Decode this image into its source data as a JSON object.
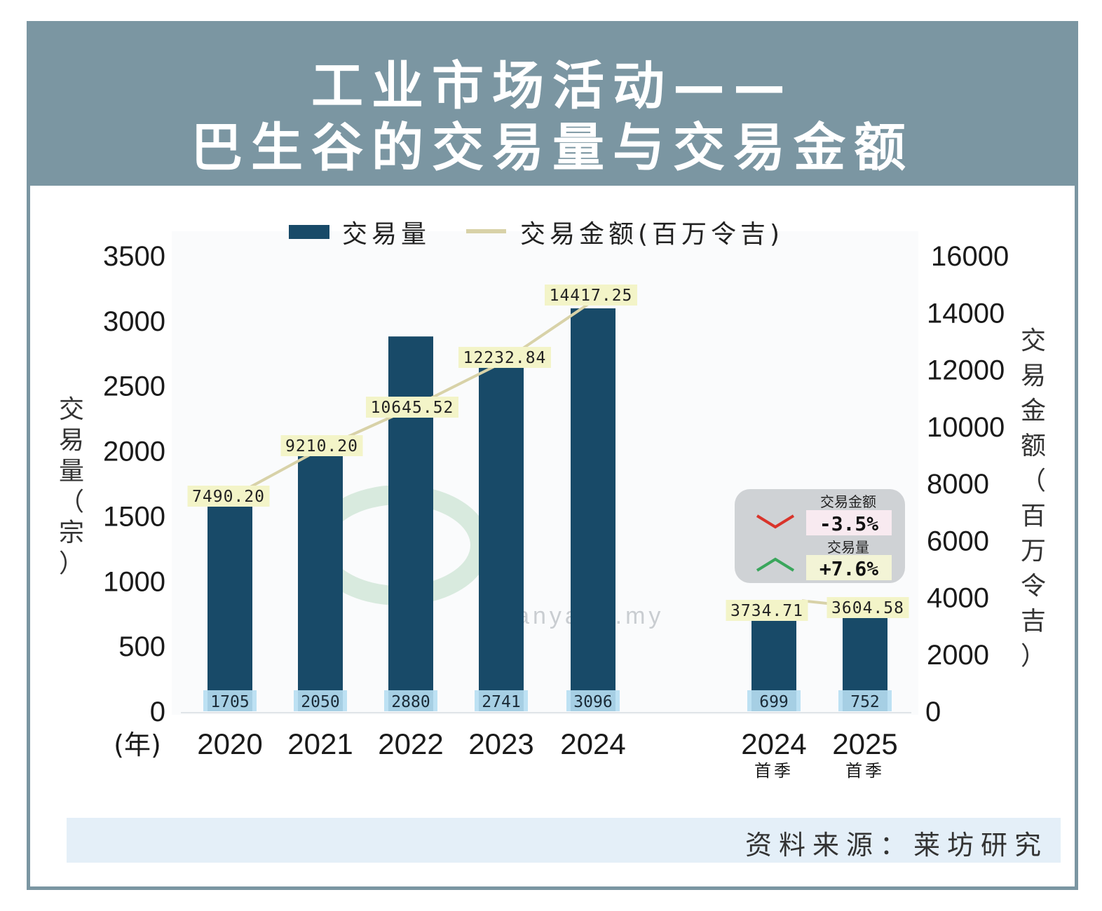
{
  "title": {
    "line1": "工业市场活动——",
    "line2": "巴生谷的交易量与交易金额"
  },
  "watermark": "eNanyang.my",
  "source": "资料来源：莱坊研究",
  "colors": {
    "bar": "#184a68",
    "line": "#d8d2a8",
    "value_label_bg": "#f3f4c8",
    "bar_label_bg": "#b6def2",
    "header": "#7b96a2",
    "down": "#d9342b",
    "up": "#3aa65c"
  },
  "chart_data": {
    "type": "bar",
    "legend": {
      "placement": "top-center",
      "items": [
        "交易量",
        "交易金额(百万令吉)"
      ]
    },
    "x_axis_unit": "(年)",
    "categories": [
      "2020",
      "2021",
      "2022",
      "2023",
      "2024",
      "2024",
      "2025"
    ],
    "category_sublabels": [
      "",
      "",
      "",
      "",
      "",
      "首季",
      "首季"
    ],
    "y_left": {
      "label": "交易量（宗）",
      "ylim": [
        0,
        3500
      ],
      "ticks": [
        "0",
        "500",
        "1000",
        "1500",
        "2000",
        "2500",
        "3000",
        "3500"
      ]
    },
    "y_right": {
      "label": "交易金额（百万令吉）",
      "ylim": [
        0,
        16000
      ],
      "ticks": [
        "0",
        "2000",
        "4000",
        "6000",
        "8000",
        "10000",
        "12000",
        "14000",
        "16000"
      ]
    },
    "series": [
      {
        "name": "交易量",
        "type": "bar",
        "axis": "left",
        "values": [
          1705,
          2050,
          2880,
          2741,
          3096,
          699,
          752
        ],
        "labels": [
          "1705",
          "2050",
          "2880",
          "2741",
          "3096",
          "699",
          "752"
        ]
      },
      {
        "name": "交易金额(百万令吉)",
        "type": "line",
        "axis": "right",
        "values": [
          7490.2,
          9210.2,
          10645.52,
          12232.84,
          14417.25,
          3734.71,
          3604.58
        ],
        "labels": [
          "7490.20",
          "9210.20",
          "10645.52",
          "12232.84",
          "14417.25",
          "3734.71",
          "3604.58"
        ]
      }
    ],
    "annotation": {
      "value_label": "交易金额",
      "value_change": "-3.5%",
      "value_direction": "down",
      "volume_label": "交易量",
      "volume_change": "+7.6%",
      "volume_direction": "up"
    },
    "grid": false
  }
}
